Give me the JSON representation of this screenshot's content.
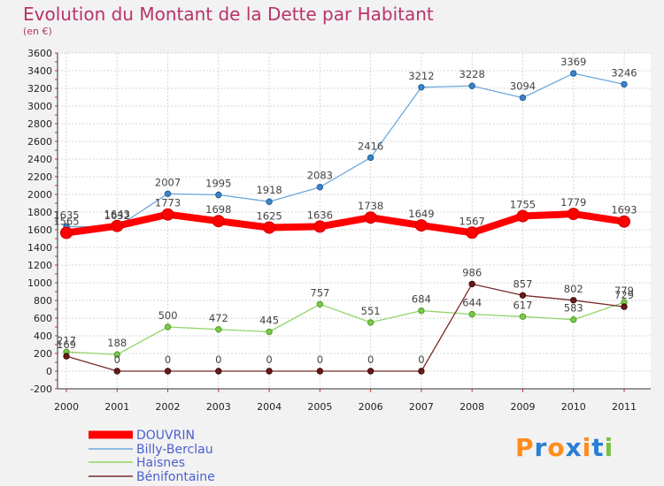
{
  "title": "Evolution du Montant de la Dette par Habitant",
  "subtitle": "(en €)",
  "logo": "Proxiti",
  "chart_data": {
    "type": "line",
    "title": "Evolution du Montant de la Dette par Habitant",
    "subtitle": "(en €)",
    "xlabel": "",
    "ylabel": "",
    "x": [
      "2000",
      "2001",
      "2002",
      "2003",
      "2004",
      "2005",
      "2006",
      "2007",
      "2008",
      "2009",
      "2010",
      "2011"
    ],
    "ylim": [
      -200,
      3600
    ],
    "yticks": [
      -200,
      0,
      200,
      400,
      600,
      800,
      1000,
      1200,
      1400,
      1600,
      1800,
      2000,
      2200,
      2400,
      2600,
      2800,
      3000,
      3200,
      3400,
      3600
    ],
    "grid": true,
    "legend_position": "bottom-left",
    "series": [
      {
        "name": "DOUVRIN",
        "color": "#ff0000",
        "values": [
          1565,
          1643,
          1773,
          1698,
          1625,
          1636,
          1738,
          1649,
          1567,
          1755,
          1779,
          1693
        ],
        "labels": [
          "1565",
          "1643",
          "1773",
          "1698",
          "1625",
          "1636",
          "1738",
          "1649",
          "1567",
          "1755",
          "1779",
          "1693"
        ]
      },
      {
        "name": "Billy-Berclau",
        "color": "#6fa8dc",
        "values": [
          1635,
          1632,
          2007,
          1995,
          1918,
          2083,
          2416,
          3212,
          3228,
          3094,
          3369,
          3246
        ],
        "labels": [
          "1635",
          "1632",
          "2007",
          "1995",
          "1918",
          "2083",
          "2416",
          "3212",
          "3228",
          "3094",
          "3369",
          "3246"
        ]
      },
      {
        "name": "Haisnes",
        "color": "#93d46a",
        "values": [
          217,
          188,
          500,
          472,
          445,
          757,
          551,
          684,
          644,
          617,
          583,
          779
        ],
        "labels": [
          "217",
          "188",
          "500",
          "472",
          "445",
          "757",
          "551",
          "684",
          "644",
          "617",
          "583",
          "779"
        ]
      },
      {
        "name": "Bénifontaine",
        "color": "#7a2a2a",
        "values": [
          169,
          0,
          0,
          0,
          0,
          0,
          0,
          0,
          986,
          857,
          802,
          729
        ],
        "labels": [
          "169",
          "0",
          "0",
          "0",
          "0",
          "0",
          "0",
          "0",
          "986",
          "857",
          "802",
          "729"
        ]
      }
    ]
  }
}
